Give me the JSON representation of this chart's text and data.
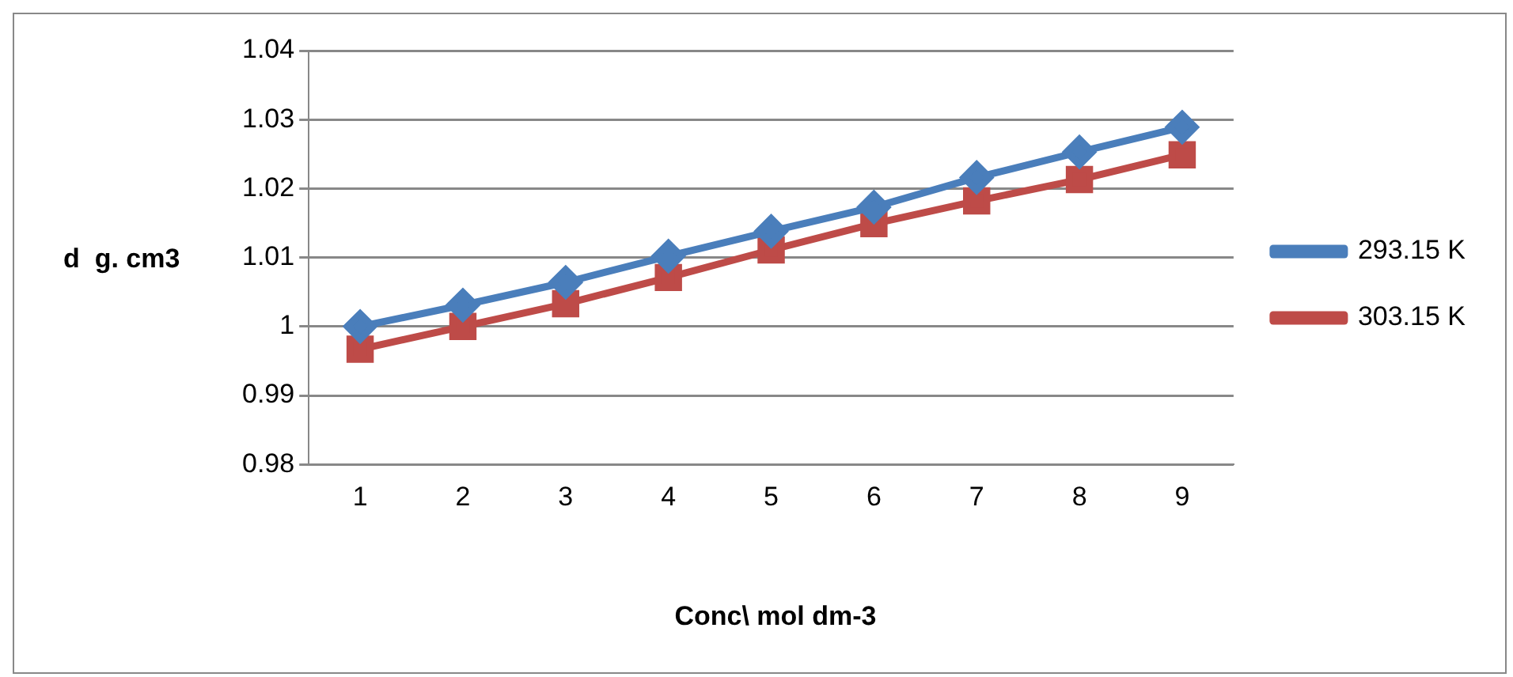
{
  "chart_data": {
    "type": "line",
    "xlabel": "Conc\\ mol dm-3",
    "ylabel": "d  g. cm3",
    "categories": [
      "1",
      "2",
      "3",
      "4",
      "5",
      "6",
      "7",
      "8",
      "9"
    ],
    "series": [
      {
        "name": "293.15 K",
        "color": "#4a7ebb",
        "marker": "diamond",
        "values": [
          1.0,
          1.0031,
          1.0064,
          1.0102,
          1.0138,
          1.0173,
          1.0216,
          1.0253,
          1.0289
        ]
      },
      {
        "name": "303.15 K",
        "color": "#be4b48",
        "marker": "square",
        "values": [
          0.9967,
          1.0,
          1.0033,
          1.0071,
          1.0111,
          1.0149,
          1.0182,
          1.0213,
          1.0249
        ]
      }
    ],
    "ylim": [
      0.98,
      1.04
    ],
    "yticks": [
      0.98,
      0.99,
      1,
      1.01,
      1.02,
      1.03,
      1.04
    ],
    "grid": "y",
    "legend": "right"
  }
}
